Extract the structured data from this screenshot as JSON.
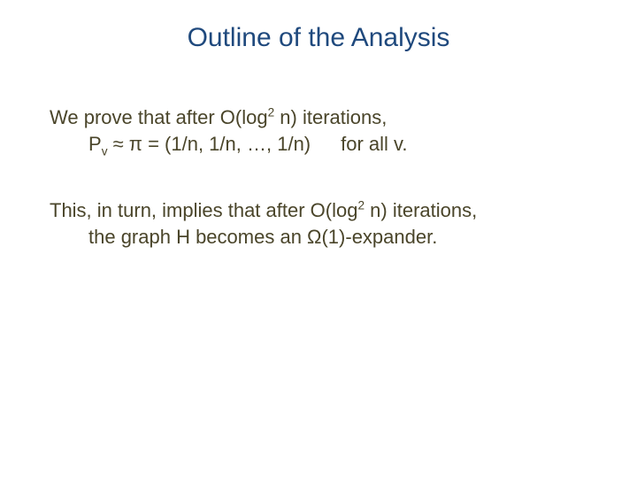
{
  "colors": {
    "title_color": "#1f497d",
    "body_color": "#4a452a",
    "background": "#ffffff"
  },
  "typography": {
    "family": "Trebuchet MS",
    "title_fontsize_pt": 30,
    "body_fontsize_pt": 22
  },
  "slide": {
    "title": "Outline of the Analysis",
    "para1_line1_a": "We prove that after O(log",
    "para1_line1_sup": "2",
    "para1_line1_b": " n) iterations,",
    "para1_line2_a": "P",
    "para1_line2_sub": "v",
    "para1_line2_b": " ≈ π = (1/n, 1/n, …, 1/n)",
    "para1_line2_c": "for all v.",
    "para2_a": "This, in turn, implies that after O(log",
    "para2_sup": "2",
    "para2_b": " n) iterations,",
    "para2_line2": "the graph H becomes an Ω(1)-expander."
  }
}
